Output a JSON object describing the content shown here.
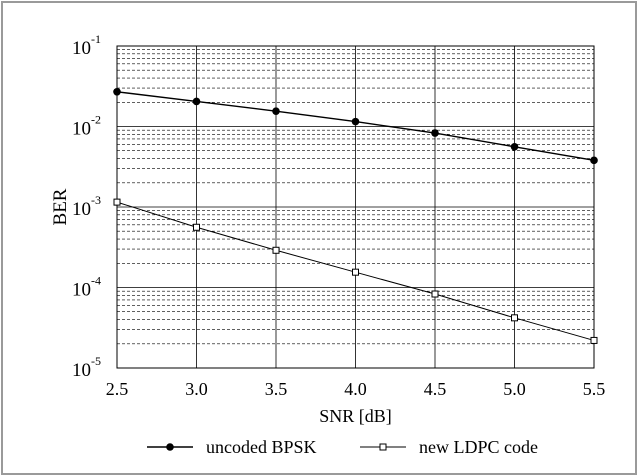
{
  "chart_data": {
    "type": "line",
    "title": "",
    "xlabel": "SNR [dB]",
    "ylabel": "BER",
    "x": [
      2.5,
      3.0,
      3.5,
      4.0,
      4.5,
      5.0,
      5.5
    ],
    "x_tick_labels": [
      "2.5",
      "3.0",
      "3.5",
      "4.0",
      "4.5",
      "5.0",
      "5.5"
    ],
    "xlim": [
      2.5,
      5.5
    ],
    "y_scale": "log",
    "ylim": [
      1e-05,
      0.1
    ],
    "y_ticks": [
      {
        "value": 0.1,
        "base": "10",
        "exp": "-1"
      },
      {
        "value": 0.01,
        "base": "10",
        "exp": "-2"
      },
      {
        "value": 0.001,
        "base": "10",
        "exp": "-3"
      },
      {
        "value": 0.0001,
        "base": "10",
        "exp": "-4"
      },
      {
        "value": 1e-05,
        "base": "10",
        "exp": "-5"
      }
    ],
    "grid": true,
    "legend_position": "bottom",
    "series": [
      {
        "name": "uncoded BPSK",
        "marker": "filled-circle",
        "color": "#000000",
        "values": [
          0.027,
          0.0205,
          0.0155,
          0.0115,
          0.0083,
          0.0056,
          0.0038
        ]
      },
      {
        "name": "new LDPC code",
        "marker": "open-square",
        "color": "#000000",
        "values": [
          0.00115,
          0.00056,
          0.00029,
          0.000155,
          8.3e-05,
          4.2e-05,
          2.2e-05
        ]
      }
    ]
  }
}
